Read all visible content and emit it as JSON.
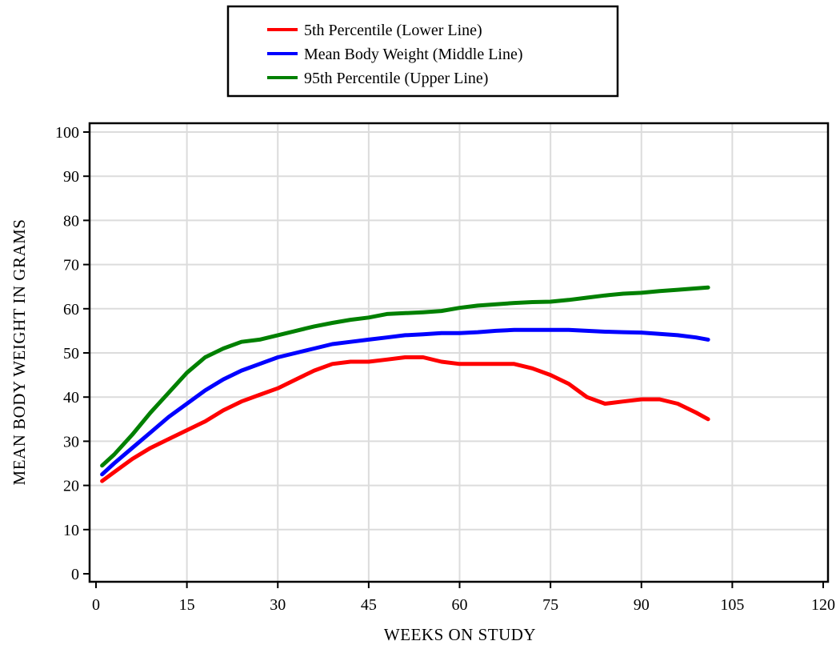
{
  "chart_data": {
    "type": "line",
    "xlabel": "WEEKS ON STUDY",
    "ylabel": "MEAN BODY WEIGHT IN GRAMS",
    "xlim": [
      0,
      120
    ],
    "ylim": [
      0,
      100
    ],
    "xticks": [
      "0",
      "15",
      "30",
      "45",
      "60",
      "75",
      "90",
      "105",
      "120"
    ],
    "yticks": [
      "0",
      "10",
      "20",
      "30",
      "40",
      "50",
      "60",
      "70",
      "80",
      "90",
      "100"
    ],
    "grid": true,
    "legend_position": "top-center",
    "series": [
      {
        "name": "5th Percentile (Lower Line)",
        "color": "#ff0000",
        "x": [
          1,
          3,
          6,
          9,
          12,
          15,
          18,
          21,
          24,
          27,
          30,
          33,
          36,
          39,
          42,
          45,
          48,
          51,
          54,
          57,
          60,
          63,
          66,
          69,
          72,
          75,
          78,
          81,
          84,
          87,
          90,
          93,
          96,
          99,
          101
        ],
        "y": [
          21,
          23,
          26,
          28.5,
          30.5,
          32.5,
          34.5,
          37,
          39,
          40.5,
          42,
          44,
          46,
          47.5,
          48,
          48,
          48.5,
          49,
          49,
          48,
          47.5,
          47.5,
          47.5,
          47.5,
          46.5,
          45,
          43,
          40,
          38.5,
          39,
          39.5,
          39.5,
          38.5,
          36.5,
          35
        ]
      },
      {
        "name": "Mean Body Weight (Middle Line)",
        "color": "#0000ff",
        "x": [
          1,
          3,
          6,
          9,
          12,
          15,
          18,
          21,
          24,
          27,
          30,
          33,
          36,
          39,
          42,
          45,
          48,
          51,
          54,
          57,
          60,
          63,
          66,
          69,
          72,
          75,
          78,
          81,
          84,
          87,
          90,
          93,
          96,
          99,
          101
        ],
        "y": [
          22.5,
          25,
          28.5,
          32,
          35.5,
          38.5,
          41.5,
          44,
          46,
          47.5,
          49,
          50,
          51,
          52,
          52.5,
          53,
          53.5,
          54,
          54.2,
          54.5,
          54.5,
          54.7,
          55,
          55.2,
          55.2,
          55.2,
          55.2,
          55,
          54.8,
          54.7,
          54.6,
          54.3,
          54,
          53.5,
          53
        ]
      },
      {
        "name": "95th Percentile (Upper Line)",
        "color": "#008000",
        "x": [
          1,
          3,
          6,
          9,
          12,
          15,
          18,
          21,
          24,
          27,
          30,
          33,
          36,
          39,
          42,
          45,
          48,
          51,
          54,
          57,
          60,
          63,
          66,
          69,
          72,
          75,
          78,
          81,
          84,
          87,
          90,
          93,
          96,
          99,
          101
        ],
        "y": [
          24.5,
          27,
          31.5,
          36.5,
          41,
          45.5,
          49,
          51,
          52.5,
          53,
          54,
          55,
          56,
          56.8,
          57.5,
          58,
          58.8,
          59,
          59.2,
          59.5,
          60.2,
          60.7,
          61,
          61.3,
          61.5,
          61.6,
          62,
          62.5,
          63,
          63.4,
          63.6,
          64,
          64.3,
          64.6,
          64.8
        ]
      }
    ]
  }
}
